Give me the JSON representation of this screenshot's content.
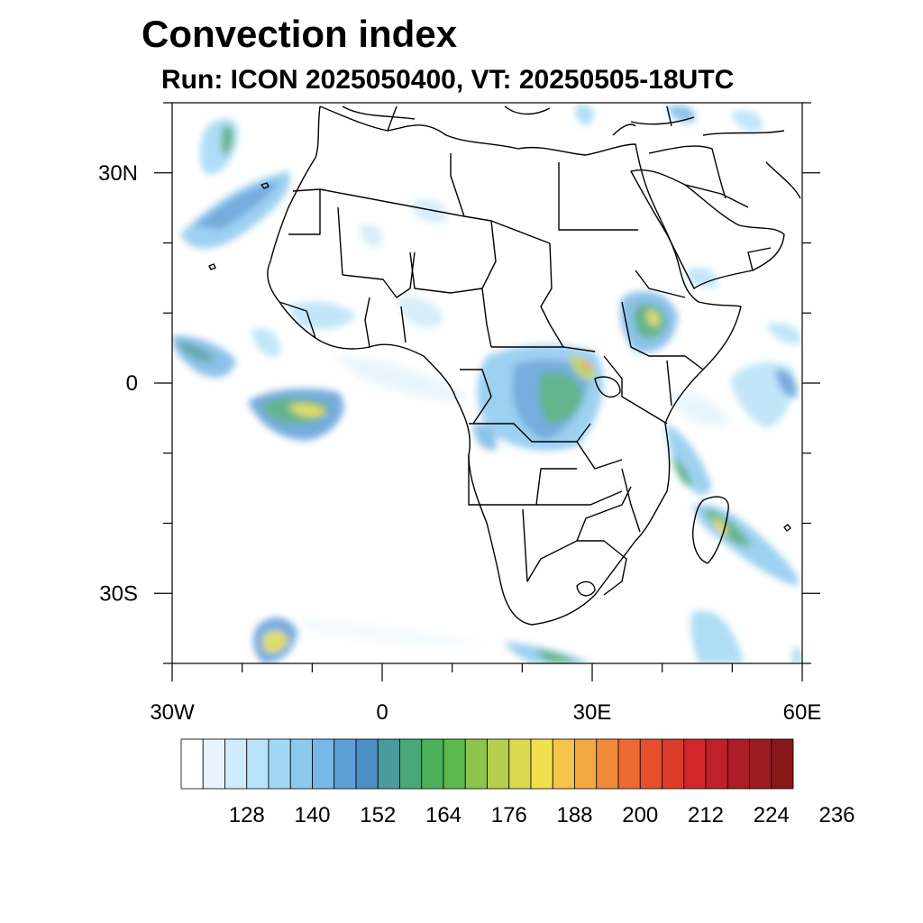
{
  "title": "Convection index",
  "subtitle": "Run: ICON 2025050400,  VT: 20250505-18UTC",
  "map": {
    "lat_labels": [
      {
        "lat": 30,
        "text": "30N"
      },
      {
        "lat": 0,
        "text": "0"
      },
      {
        "lat": -30,
        "text": "30S"
      }
    ],
    "lon_labels": [
      {
        "lon": -30,
        "text": "30W"
      },
      {
        "lon": 0,
        "text": "0"
      },
      {
        "lon": 30,
        "text": "30E"
      },
      {
        "lon": 60,
        "text": "60E"
      }
    ],
    "lon_range": [
      -30,
      60
    ],
    "lat_range": [
      -40,
      40
    ],
    "land_color": "#ffffff",
    "border_color": "#000000"
  },
  "colorbar": {
    "labels": [
      "128",
      "140",
      "152",
      "164",
      "176",
      "188",
      "200",
      "212",
      "224",
      "236"
    ],
    "colors": [
      "#ffffff",
      "#e8f4fc",
      "#d0ebfa",
      "#b8e2f8",
      "#a0d8f5",
      "#8cc9ef",
      "#78b8e6",
      "#5f9fd8",
      "#4d8ec5",
      "#4a9a9e",
      "#48a878",
      "#4ab05a",
      "#5cb84a",
      "#8cc44c",
      "#b6d04e",
      "#dcd850",
      "#f0e04e",
      "#f6c44a",
      "#f4a840",
      "#f08a38",
      "#ec6a32",
      "#e4502e",
      "#dc3c2c",
      "#d0282a",
      "#c0202a",
      "#ac1c26",
      "#9a1c22",
      "#881818"
    ]
  }
}
